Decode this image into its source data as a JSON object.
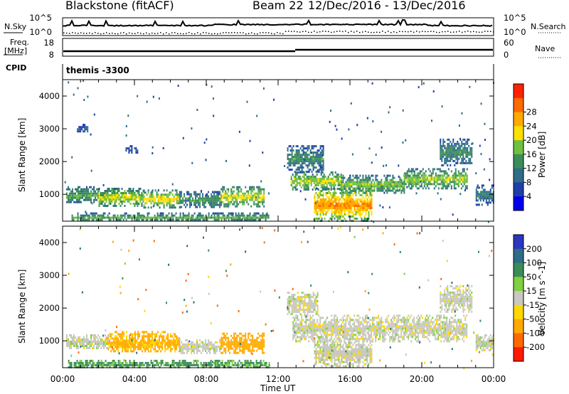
{
  "header": {
    "station": "Blackstone (fitACF)",
    "beam": "Beam 22",
    "date_range": "12/Dec/2016 - 13/Dec/2016",
    "cpid_label": "CPID",
    "cpid_value": "themis -3300"
  },
  "nsky_panel": {
    "left_label": "N.Sky",
    "right_label": "N.Search",
    "y_ticks_left": [
      "10^5",
      "10^0"
    ],
    "y_ticks_right": [
      "10^5",
      "10^0"
    ]
  },
  "freq_panel": {
    "left_label_1": "Freq.",
    "left_label_2": "[MHz]",
    "right_label": "Nave",
    "y_ticks_left": [
      "18",
      "8"
    ],
    "y_ticks_right": [
      "60",
      "0"
    ]
  },
  "chart_data": [
    {
      "type": "heatmap",
      "name": "power",
      "ylabel": "Slant Range [km]",
      "yticks": [
        1000,
        2000,
        3000,
        4000
      ],
      "ylim": [
        180,
        4500
      ],
      "xlim": [
        0,
        24
      ],
      "colorbar": {
        "label": "Power [dB]",
        "ticks": [
          4,
          8,
          12,
          16,
          20,
          24,
          28
        ],
        "colors": [
          "#0000ee",
          "#1f3fa8",
          "#2e6d88",
          "#3c8c5a",
          "#70c040",
          "#ffe000",
          "#ffaa00",
          "#ff6a00",
          "#ff2200"
        ]
      },
      "regions": [
        {
          "t0": 0.2,
          "t1": 2.0,
          "r0": 750,
          "r1": 1250,
          "level": 12
        },
        {
          "t0": 2.0,
          "t1": 4.5,
          "r0": 650,
          "r1": 1200,
          "level": 16
        },
        {
          "t0": 4.5,
          "t1": 6.5,
          "r0": 600,
          "r1": 1150,
          "level": 18
        },
        {
          "t0": 6.5,
          "t1": 8.8,
          "r0": 620,
          "r1": 1100,
          "level": 11
        },
        {
          "t0": 8.8,
          "t1": 11.2,
          "r0": 650,
          "r1": 1250,
          "level": 17
        },
        {
          "t0": 0.5,
          "t1": 11.5,
          "r0": 200,
          "r1": 450,
          "level": 12
        },
        {
          "t0": 12.7,
          "t1": 15.5,
          "r0": 1150,
          "r1": 1700,
          "level": 16
        },
        {
          "t0": 15.5,
          "t1": 19.0,
          "r0": 1050,
          "r1": 1600,
          "level": 14
        },
        {
          "t0": 19.0,
          "t1": 22.5,
          "r0": 1200,
          "r1": 1800,
          "level": 15
        },
        {
          "t0": 14.0,
          "t1": 17.2,
          "r0": 200,
          "r1": 1200,
          "level": 22
        },
        {
          "t0": 12.5,
          "t1": 14.5,
          "r0": 1700,
          "r1": 2500,
          "level": 10
        },
        {
          "t0": 21.0,
          "t1": 22.8,
          "r0": 1900,
          "r1": 2700,
          "level": 10
        },
        {
          "t0": 0.8,
          "t1": 1.4,
          "r0": 2900,
          "r1": 3150,
          "level": 6
        },
        {
          "t0": 3.5,
          "t1": 4.2,
          "r0": 2300,
          "r1": 2500,
          "level": 6
        },
        {
          "t0": 23.0,
          "t1": 24.0,
          "r0": 700,
          "r1": 1300,
          "level": 8
        }
      ]
    },
    {
      "type": "heatmap",
      "name": "velocity",
      "ylabel": "Slant Range [km]",
      "yticks": [
        1000,
        2000,
        3000,
        4000
      ],
      "ylim": [
        180,
        4500
      ],
      "xlim": [
        0,
        24
      ],
      "xlabel": "Time UT",
      "xticks": [
        "00:00",
        "04:00",
        "08:00",
        "12:00",
        "16:00",
        "20:00",
        "00:00"
      ],
      "colorbar": {
        "label": "Velocity [m s^-1]",
        "ticks": [
          200,
          100,
          50,
          15,
          -15,
          -50,
          -100,
          -200
        ],
        "colors": [
          "#2a36c0",
          "#2e6d88",
          "#3c8c5a",
          "#80d040",
          "#c8c8c0",
          "#ffd800",
          "#ffaa00",
          "#ff6a00",
          "#ff1a00"
        ]
      },
      "regions": [
        {
          "t0": 0.2,
          "t1": 2.5,
          "r0": 750,
          "r1": 1200,
          "velocity": 0
        },
        {
          "t0": 2.5,
          "t1": 6.5,
          "r0": 650,
          "r1": 1300,
          "velocity": -60
        },
        {
          "t0": 6.5,
          "t1": 8.8,
          "r0": 620,
          "r1": 1050,
          "velocity": 0
        },
        {
          "t0": 8.8,
          "t1": 11.2,
          "r0": 650,
          "r1": 1250,
          "velocity": -80
        },
        {
          "t0": 0.3,
          "t1": 11.5,
          "r0": 200,
          "r1": 420,
          "velocity": 40
        },
        {
          "t0": 12.8,
          "t1": 22.5,
          "r0": 1000,
          "r1": 1800,
          "velocity": 0
        },
        {
          "t0": 12.5,
          "t1": 14.2,
          "r0": 1800,
          "r1": 2500,
          "velocity": 0
        },
        {
          "t0": 14.0,
          "t1": 17.2,
          "r0": 200,
          "r1": 1100,
          "velocity": 0
        },
        {
          "t0": 21.0,
          "t1": 22.8,
          "r0": 1900,
          "r1": 2700,
          "velocity": 0
        },
        {
          "t0": 23.0,
          "t1": 24.0,
          "r0": 700,
          "r1": 1200,
          "velocity": 0
        }
      ]
    }
  ]
}
